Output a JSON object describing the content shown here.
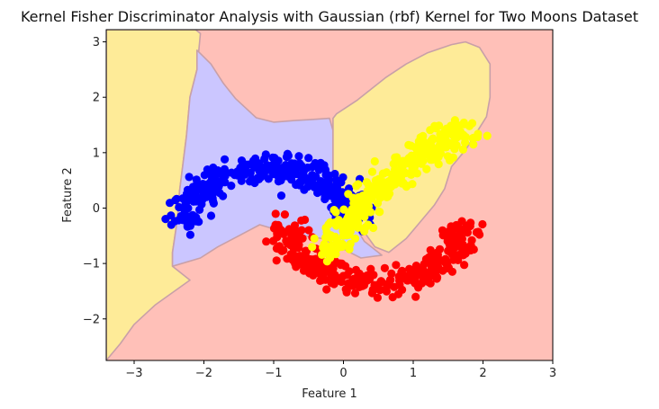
{
  "chart_data": {
    "type": "scatter",
    "title": "Kernel Fisher Discriminator Analysis with Gaussian (rbf) Kernel for Two Moons Dataset",
    "xlabel": "Feature 1",
    "ylabel": "Feature 2",
    "xlim": [
      -3.4,
      3.0
    ],
    "ylim": [
      -2.75,
      3.22
    ],
    "xticks": [
      -3,
      -2,
      -1,
      0,
      1,
      2,
      3
    ],
    "yticks": [
      -2,
      -1,
      0,
      1,
      2,
      3
    ],
    "grid": false,
    "colors": {
      "region_pink": "#ffc0b8",
      "region_yellow": "#feeb98",
      "region_purple": "#cbc6ff",
      "boundary": "#c8a0a8",
      "blue": "#0000ff",
      "red": "#ff0000",
      "yellow": "#ffff00"
    },
    "regions": [
      {
        "fill": "region_yellow",
        "points": [
          [
            -3.4,
            3.22
          ],
          [
            -2.12,
            3.22
          ],
          [
            -2.05,
            3.15
          ],
          [
            -2.1,
            2.5
          ],
          [
            -2.2,
            2.0
          ],
          [
            -2.25,
            1.3
          ],
          [
            -2.35,
            0.3
          ],
          [
            -2.38,
            -0.2
          ],
          [
            -2.45,
            -0.8
          ],
          [
            -2.45,
            -1.05
          ],
          [
            -2.2,
            -1.3
          ],
          [
            -2.7,
            -1.75
          ],
          [
            -3.0,
            -2.1
          ],
          [
            -3.2,
            -2.45
          ],
          [
            -3.4,
            -2.75
          ]
        ]
      },
      {
        "fill": "region_purple",
        "points": [
          [
            -2.1,
            2.85
          ],
          [
            -1.9,
            2.6
          ],
          [
            -1.72,
            2.25
          ],
          [
            -1.55,
            1.98
          ],
          [
            -1.25,
            1.63
          ],
          [
            -1.0,
            1.55
          ],
          [
            -0.7,
            1.58
          ],
          [
            -0.45,
            1.6
          ],
          [
            -0.2,
            1.62
          ],
          [
            -0.15,
            1.4
          ],
          [
            -0.15,
            0.2
          ],
          [
            0.1,
            -0.2
          ],
          [
            0.3,
            -0.6
          ],
          [
            0.55,
            -0.85
          ],
          [
            0.25,
            -0.9
          ],
          [
            -0.3,
            -0.55
          ],
          [
            -0.8,
            -0.45
          ],
          [
            -1.2,
            -0.3
          ],
          [
            -1.5,
            -0.5
          ],
          [
            -1.8,
            -0.7
          ],
          [
            -2.05,
            -0.9
          ],
          [
            -2.45,
            -1.05
          ],
          [
            -2.45,
            -0.8
          ],
          [
            -2.38,
            -0.2
          ],
          [
            -2.35,
            0.3
          ],
          [
            -2.25,
            1.3
          ],
          [
            -2.2,
            2.0
          ],
          [
            -2.1,
            2.5
          ]
        ]
      },
      {
        "fill": "region_yellow",
        "points": [
          [
            -0.1,
            1.7
          ],
          [
            0.2,
            1.95
          ],
          [
            0.6,
            2.35
          ],
          [
            0.9,
            2.6
          ],
          [
            1.2,
            2.8
          ],
          [
            1.55,
            2.95
          ],
          [
            1.75,
            3.0
          ],
          [
            1.95,
            2.9
          ],
          [
            2.1,
            2.6
          ],
          [
            2.1,
            2.0
          ],
          [
            2.05,
            1.65
          ],
          [
            1.9,
            1.35
          ],
          [
            1.75,
            1.05
          ],
          [
            1.55,
            0.75
          ],
          [
            1.45,
            0.35
          ],
          [
            1.3,
            0.05
          ],
          [
            1.1,
            -0.25
          ],
          [
            0.9,
            -0.55
          ],
          [
            0.65,
            -0.8
          ],
          [
            0.45,
            -0.7
          ],
          [
            0.25,
            -0.35
          ],
          [
            0.1,
            -0.05
          ],
          [
            -0.1,
            0.3
          ],
          [
            -0.15,
            0.7
          ],
          [
            -0.15,
            1.2
          ],
          [
            -0.15,
            1.62
          ]
        ]
      }
    ],
    "series": [
      {
        "color": "blue",
        "n": 330,
        "generator": "upper_moon"
      },
      {
        "color": "red",
        "n": 330,
        "generator": "lower_moon"
      },
      {
        "color": "yellow",
        "n": 330,
        "generator": "right_arc"
      }
    ]
  }
}
